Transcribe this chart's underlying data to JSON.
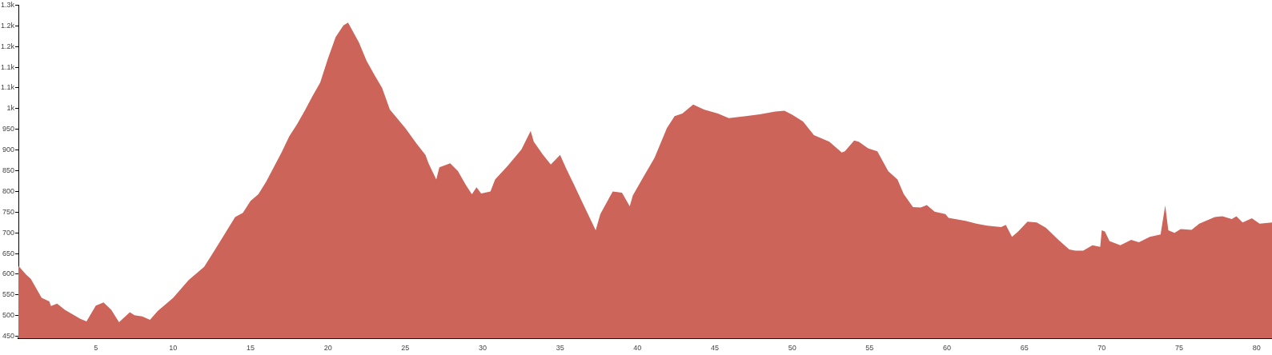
{
  "chart_data": {
    "type": "area",
    "color": "#cd6459",
    "grid": false,
    "marker": "none",
    "xlim": [
      0,
      81
    ],
    "ylim": [
      445,
      1250
    ],
    "xticks": [
      5,
      10,
      15,
      20,
      25,
      30,
      35,
      40,
      45,
      50,
      55,
      60,
      65,
      70,
      75,
      80
    ],
    "yticks": [
      450,
      500,
      550,
      600,
      650,
      700,
      750,
      800,
      850,
      900,
      950,
      {
        "value": 1000,
        "label": "1k"
      },
      {
        "value": 1050,
        "label": "1.1k"
      },
      {
        "value": 1100,
        "label": "1.1k"
      },
      {
        "value": 1150,
        "label": "1.2k"
      },
      {
        "value": 1200,
        "label": "1.2k"
      },
      {
        "value": 1250,
        "label": "1.3k"
      }
    ],
    "x": [
      0,
      0.5,
      0.8,
      1.5,
      2,
      2.1,
      2.5,
      3,
      4,
      4.4,
      5,
      5.5,
      6,
      6.5,
      7.2,
      7.5,
      8,
      8.5,
      9,
      10,
      11,
      12,
      12.5,
      13,
      14,
      14.5,
      15,
      15.5,
      16,
      17,
      17.5,
      18,
      18.5,
      19,
      19.5,
      20,
      20.5,
      21,
      21.3,
      22,
      22.5,
      23,
      23.5,
      24,
      25,
      25.75,
      26.3,
      26.5,
      27.0,
      27.2,
      27.9,
      28.4,
      28.9,
      29.3,
      29.6,
      29.9,
      30.5,
      30.8,
      31.6,
      32.5,
      33.1,
      33.3,
      33.9,
      34.4,
      35.0,
      35.4,
      35.9,
      36.8,
      37.3,
      37.6,
      38.4,
      39.0,
      39.5,
      39.7,
      40.4,
      41.1,
      41.9,
      42.4,
      42.9,
      43.6,
      44.3,
      45.2,
      45.9,
      47.0,
      47.9,
      48.9,
      49.5,
      50.0,
      50.7,
      51.4,
      52.4,
      53.2,
      53.4,
      54.0,
      54.3,
      54.9,
      55.5,
      56.2,
      56.8,
      57.2,
      57.8,
      58.3,
      58.7,
      59.2,
      59.9,
      60.1,
      61.2,
      61.9,
      62.6,
      63.5,
      63.8,
      64.2,
      64.6,
      65.2,
      65.8,
      66.4,
      67.2,
      67.9,
      68.3,
      68.8,
      69.4,
      69.9,
      70.0,
      70.2,
      70.5,
      71.2,
      71.9,
      72.4,
      73.1,
      73.8,
      74.1,
      74.3,
      74.7,
      75.1,
      75.8,
      76.3,
      77.3,
      77.8,
      78.4,
      78.7,
      79.1,
      79.7,
      80.2,
      81.0
    ],
    "values": [
      620,
      599,
      589,
      543,
      534,
      523,
      529,
      514,
      492,
      486,
      524,
      532,
      514,
      484,
      508,
      501,
      498,
      490,
      511,
      543,
      586,
      618,
      647,
      677,
      738,
      748,
      777,
      793,
      823,
      894,
      933,
      962,
      995,
      1030,
      1063,
      1121,
      1173,
      1201,
      1208,
      1160,
      1115,
      1082,
      1050,
      998,
      953,
      914,
      888,
      868,
      829,
      858,
      868,
      849,
      816,
      793,
      810,
      795,
      800,
      829,
      861,
      901,
      946,
      920,
      888,
      865,
      888,
      855,
      816,
      745,
      706,
      745,
      800,
      797,
      764,
      790,
      836,
      881,
      953,
      982,
      988,
      1010,
      998,
      988,
      977,
      982,
      986,
      993,
      995,
      985,
      969,
      936,
      920,
      894,
      897,
      923,
      920,
      904,
      897,
      849,
      829,
      794,
      762,
      761,
      767,
      751,
      745,
      736,
      729,
      722,
      717,
      714,
      719,
      690,
      703,
      727,
      725,
      712,
      683,
      660,
      657,
      657,
      670,
      666,
      706,
      703,
      680,
      670,
      683,
      677,
      690,
      696,
      766,
      706,
      700,
      709,
      707,
      722,
      738,
      740,
      733,
      740,
      725,
      735,
      722,
      725
    ]
  }
}
